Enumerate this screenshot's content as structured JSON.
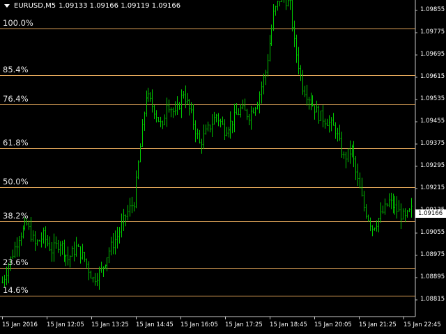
{
  "header": {
    "symbol": "EURUSD,M5",
    "ohlc": "1.09133 1.09166 1.09119 1.09166"
  },
  "fib_levels": [
    {
      "label": "100.0%",
      "price": 1.098
    },
    {
      "label": "85.4%",
      "price": 1.0964
    },
    {
      "label": "76.4%",
      "price": 1.09538
    },
    {
      "label": "61.8%",
      "price": 1.09385
    },
    {
      "label": "50.0%",
      "price": 1.0925
    },
    {
      "label": "38.2%",
      "price": 1.09132
    },
    {
      "label": "23.6%",
      "price": 1.0897
    },
    {
      "label": "14.6%",
      "price": 1.08872
    }
  ],
  "price_axis": {
    "ticks": [
      "1.09855",
      "1.09775",
      "1.09695",
      "1.09615",
      "1.09535",
      "1.09455",
      "1.09375",
      "1.09295",
      "1.09215",
      "1.09135",
      "1.09055",
      "1.08975",
      "1.08895",
      "1.08815"
    ],
    "current": "1.09166",
    "min": 1.088,
    "max": 1.099
  },
  "time_axis": {
    "ticks": [
      "15 Jan 2016",
      "15 Jan 12:05",
      "15 Jan 13:25",
      "15 Jan 14:45",
      "15 Jan 16:05",
      "15 Jan 17:25",
      "15 Jan 18:45",
      "15 Jan 20:05",
      "15 Jan 21:25",
      "15 Jan 22:45"
    ]
  },
  "colors": {
    "candle": "#00c800",
    "fib_line": "#e2a65a",
    "background": "#000000",
    "axis": "#c8c8c8"
  },
  "chart_data": {
    "type": "ohlc",
    "symbol": "EURUSD",
    "timeframe": "M5",
    "close_path": [
      [
        0,
        1.0892
      ],
      [
        4,
        1.09
      ],
      [
        8,
        1.0908
      ],
      [
        12,
        1.0912
      ],
      [
        16,
        1.0905
      ],
      [
        20,
        1.0908
      ],
      [
        24,
        1.0903
      ],
      [
        28,
        1.0906
      ],
      [
        32,
        1.09
      ],
      [
        36,
        1.0904
      ],
      [
        40,
        1.09
      ],
      [
        44,
        1.0893
      ],
      [
        48,
        1.0896
      ],
      [
        52,
        1.0903
      ],
      [
        56,
        1.0908
      ],
      [
        60,
        1.0915
      ],
      [
        64,
        1.092
      ],
      [
        66,
        1.0933
      ],
      [
        68,
        1.0945
      ],
      [
        70,
        1.0957
      ],
      [
        74,
        1.0952
      ],
      [
        78,
        1.0945
      ],
      [
        80,
        1.0955
      ],
      [
        84,
        1.095
      ],
      [
        88,
        1.0958
      ],
      [
        92,
        1.095
      ],
      [
        96,
        1.094
      ],
      [
        100,
        1.0945
      ],
      [
        104,
        1.095
      ],
      [
        108,
        1.0945
      ],
      [
        112,
        1.0948
      ],
      [
        116,
        1.0952
      ],
      [
        120,
        1.095
      ],
      [
        124,
        1.0955
      ],
      [
        128,
        1.0965
      ],
      [
        132,
        1.0985
      ],
      [
        136,
        1.0992
      ],
      [
        140,
        1.0988
      ],
      [
        142,
        1.0975
      ],
      [
        146,
        1.096
      ],
      [
        150,
        1.0955
      ],
      [
        154,
        1.095
      ],
      [
        158,
        1.0948
      ],
      [
        162,
        1.0945
      ],
      [
        166,
        1.0935
      ],
      [
        170,
        1.0938
      ],
      [
        172,
        1.093
      ],
      [
        176,
        1.0918
      ],
      [
        180,
        1.0911
      ],
      [
        184,
        1.0915
      ],
      [
        188,
        1.092
      ],
      [
        192,
        1.0917
      ],
      [
        196,
        1.0914
      ],
      [
        199,
        1.0917
      ]
    ]
  }
}
